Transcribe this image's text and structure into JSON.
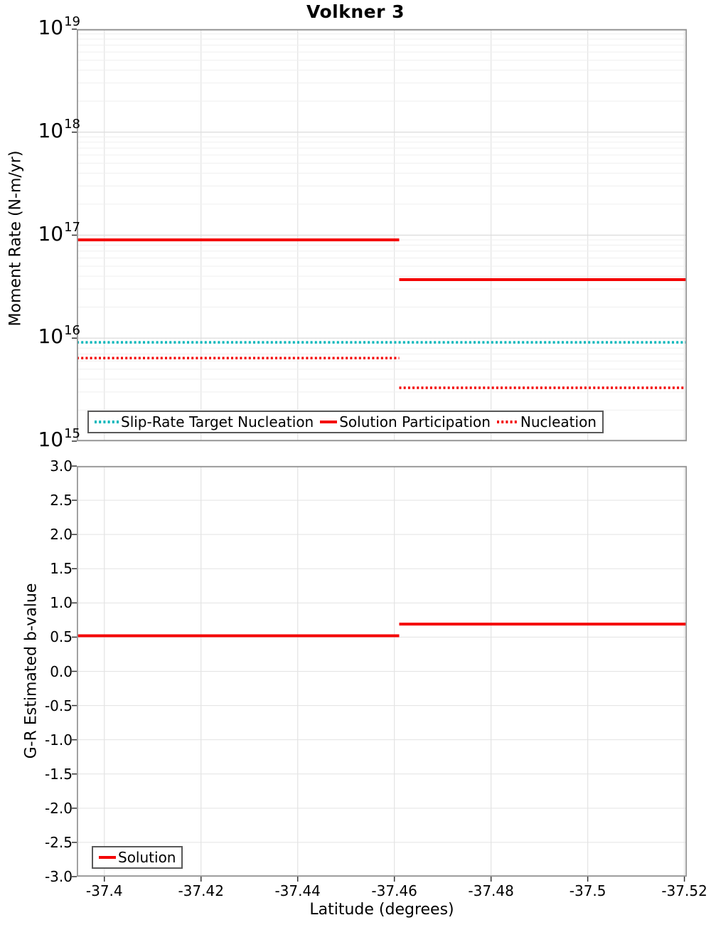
{
  "title": "Volkner 3",
  "colors": {
    "solution_red": "#f40000",
    "target_cyan": "#00b7bb",
    "grid_major": "#dcdcdc",
    "grid_minor": "#efefef",
    "grid_vertical": "#e3e3e3",
    "panel_border": "#979797",
    "tick_mark": "#333333",
    "legend_border": "#595959"
  },
  "xaxis": {
    "label": "Latitude (degrees)",
    "domain": [
      -37.3943,
      -37.5205
    ],
    "ticks": [
      -37.4,
      -37.42,
      -37.44,
      -37.46,
      -37.48,
      -37.5,
      -37.52
    ],
    "tick_labels": [
      "-37.4",
      "-37.42",
      "-37.44",
      "-37.46",
      "-37.48",
      "-37.5",
      "-37.52"
    ]
  },
  "panels": {
    "moment": {
      "ylabel": "Moment Rate (N-m/yr)",
      "yscale": "log",
      "ytick_exponents": [
        19,
        18,
        17,
        16,
        15
      ],
      "legend": [
        {
          "label": "Slip-Rate Target Nucleation",
          "color": "#00b7bb",
          "style": "dotted",
          "swatch_w": 34
        },
        {
          "label": "Solution Participation",
          "color": "#f40000",
          "style": "solid",
          "swatch_w": 24
        },
        {
          "label": "Nucleation",
          "color": "#f40000",
          "style": "dotted",
          "swatch_w": 30
        }
      ]
    },
    "bvalue": {
      "ylabel": "G-R Estimated b-value",
      "ytick_values": [
        3,
        2.5,
        2,
        1.5,
        1,
        0.5,
        0,
        -0.5,
        -1,
        -1.5,
        -2,
        -2.5,
        -3
      ],
      "ytick_labels": [
        "3.0",
        "2.5",
        "2.0",
        "1.5",
        "1.0",
        "0.5",
        "0.0",
        "-0.5",
        "-1.0",
        "-1.5",
        "-2.0",
        "-2.5",
        "-3.0"
      ],
      "legend": [
        {
          "label": "Solution",
          "color": "#f40000",
          "style": "solid",
          "swatch_w": 24
        }
      ]
    }
  },
  "chart_data": [
    {
      "type": "line",
      "title": "Volkner 3",
      "xlabel": "Latitude (degrees)",
      "ylabel": "Moment Rate (N-m/yr)",
      "yscale": "log",
      "ylim": [
        1000000000000000.0,
        1e+19
      ],
      "xlim": [
        -37.3943,
        -37.5205
      ],
      "x_axis_inverted_display": true,
      "grid": true,
      "legend_position": "inside-bottom-left",
      "series": [
        {
          "name": "Slip-Rate Target Nucleation",
          "color": "#00b7bb",
          "line_style": "dotted",
          "line_width": 3.5,
          "segments": [
            {
              "x0": -37.3943,
              "x1": -37.5205,
              "y": 9100000000000000.0
            }
          ]
        },
        {
          "name": "Solution Participation",
          "color": "#f40000",
          "line_style": "solid",
          "line_width": 4,
          "segments": [
            {
              "x0": -37.3943,
              "x1": -37.461,
              "y": 9e+16
            },
            {
              "x0": -37.461,
              "x1": -37.5205,
              "y": 3.7e+16
            }
          ]
        },
        {
          "name": "Nucleation",
          "color": "#f40000",
          "line_style": "dotted",
          "line_width": 3.5,
          "segments": [
            {
              "x0": -37.3943,
              "x1": -37.461,
              "y": 6400000000000000.0
            },
            {
              "x0": -37.461,
              "x1": -37.5205,
              "y": 3300000000000000.0
            }
          ]
        }
      ]
    },
    {
      "type": "line",
      "xlabel": "Latitude (degrees)",
      "ylabel": "G-R Estimated b-value",
      "ylim": [
        -3.0,
        3.0
      ],
      "ytick_step": 0.5,
      "xlim": [
        -37.3943,
        -37.5205
      ],
      "grid": true,
      "legend_position": "inside-bottom-left",
      "series": [
        {
          "name": "Solution",
          "color": "#f40000",
          "line_style": "solid",
          "line_width": 4,
          "segments": [
            {
              "x0": -37.3943,
              "x1": -37.461,
              "y": 0.52
            },
            {
              "x0": -37.461,
              "x1": -37.5205,
              "y": 0.69
            }
          ]
        }
      ]
    }
  ]
}
